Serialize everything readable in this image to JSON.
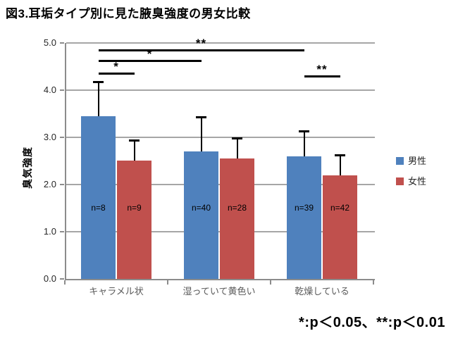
{
  "title": "図3.耳垢タイプ別に見た腋臭強度の男女比較",
  "footnote": "*:p＜0.05、**:p＜0.01",
  "y_axis": {
    "title": "臭気強度",
    "ticks": [
      "5.0",
      "4.0",
      "3.0",
      "2.0",
      "1.0",
      "0.0"
    ]
  },
  "chart_data": {
    "type": "bar",
    "title": "図3.耳垢タイプ別に見た腋臭強度の男女比較",
    "categories": [
      "キャラメル状",
      "湿っていて黄色い",
      "乾燥している"
    ],
    "series": [
      {
        "name": "男性",
        "color": "#4f81bd",
        "values": [
          3.45,
          2.7,
          2.6
        ],
        "error_upper": [
          0.75,
          0.75,
          0.55
        ],
        "n_labels": [
          "n=8",
          "n=40",
          "n=39"
        ]
      },
      {
        "name": "女性",
        "color": "#c0504d",
        "values": [
          2.5,
          2.55,
          2.2
        ],
        "error_upper": [
          0.45,
          0.45,
          0.45
        ],
        "n_labels": [
          "n=9",
          "n=28",
          "n=42"
        ]
      }
    ],
    "ylabel": "臭気強度",
    "ylim": [
      0,
      5
    ],
    "ytick_step": 1.0,
    "grid": true,
    "legend_position": "right",
    "error_bars": "upper-only",
    "significance_brackets": [
      {
        "label": "**",
        "from": {
          "category": 0,
          "series": 0
        },
        "to": {
          "category": 2,
          "series": 0
        }
      },
      {
        "label": "*",
        "from": {
          "category": 0,
          "series": 0
        },
        "to": {
          "category": 1,
          "series": 0
        }
      },
      {
        "label": "*",
        "from": {
          "category": 0,
          "series": 0
        },
        "to": {
          "category": 0,
          "series": 1
        }
      },
      {
        "label": "**",
        "from": {
          "category": 2,
          "series": 0
        },
        "to": {
          "category": 2,
          "series": 1
        }
      }
    ],
    "footnote": "*:p＜0.05、**:p＜0.01"
  }
}
